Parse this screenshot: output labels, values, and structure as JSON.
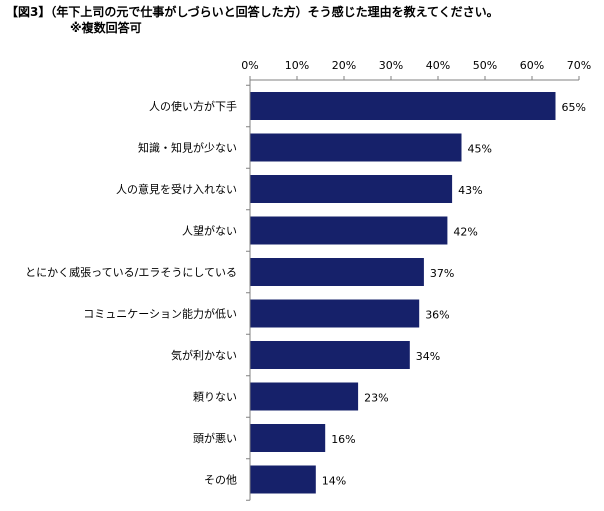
{
  "title": {
    "line1": "【図3】（年下上司の元で仕事がしづらいと回答した方）そう感じた理由を教えてください。",
    "line2": "※複数回答可"
  },
  "chart_data": {
    "type": "bar",
    "orientation": "horizontal",
    "title": "【図3】（年下上司の元で仕事がしづらいと回答した方）そう感じた理由を教えてください。",
    "subtitle": "※複数回答可",
    "categories": [
      "人の使い方が下手",
      "知識・知見が少ない",
      "人の意見を受け入れない",
      "人望がない",
      "とにかく威張っている/エラそうにしている",
      "コミュニケーション能力が低い",
      "気が利かない",
      "頼りない",
      "頭が悪い",
      "その他"
    ],
    "values": [
      65,
      45,
      43,
      42,
      37,
      36,
      34,
      23,
      16,
      14
    ],
    "value_labels": [
      "65%",
      "45%",
      "43%",
      "42%",
      "37%",
      "36%",
      "34%",
      "23%",
      "16%",
      "14%"
    ],
    "xlim": [
      0,
      70
    ],
    "xticks": [
      0,
      10,
      20,
      30,
      40,
      50,
      60,
      70
    ],
    "xtick_labels": [
      "0%",
      "10%",
      "20%",
      "30%",
      "40%",
      "50%",
      "60%",
      "70%"
    ],
    "axis_position": "top",
    "grid": false,
    "bar_color": "#16216a",
    "axis_color": "#808080"
  }
}
